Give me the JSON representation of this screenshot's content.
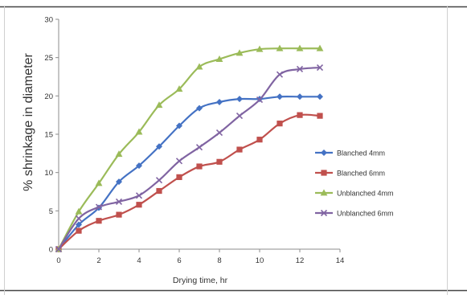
{
  "chart_data": {
    "type": "line",
    "xlabel": "Drying time, hr",
    "ylabel": "% shrinkage in diameter",
    "xlim": [
      0,
      14
    ],
    "ylim": [
      0,
      30
    ],
    "x_ticks": [
      "0",
      "2",
      "4",
      "6",
      "8",
      "10",
      "12",
      "14"
    ],
    "y_ticks": [
      "0",
      "5",
      "10",
      "15",
      "20",
      "25",
      "30"
    ],
    "grid": false,
    "legend_position": "right",
    "series": [
      {
        "name": "Blanched 4mm",
        "color": "#4472C4",
        "marker": "diamond",
        "x": [
          0,
          1,
          2,
          3,
          4,
          5,
          6,
          7,
          8,
          9,
          10,
          11,
          12,
          13
        ],
        "values": [
          0,
          3.2,
          5.4,
          8.8,
          10.9,
          13.4,
          16.1,
          18.4,
          19.2,
          19.6,
          19.6,
          19.9,
          19.9,
          19.9
        ]
      },
      {
        "name": "Blanched 6mm",
        "color": "#C0504D",
        "marker": "square",
        "x": [
          0,
          1,
          2,
          3,
          4,
          5,
          6,
          7,
          8,
          9,
          10,
          11,
          12,
          13
        ],
        "values": [
          0,
          2.4,
          3.7,
          4.5,
          5.8,
          7.6,
          9.4,
          10.8,
          11.4,
          13.0,
          14.3,
          16.4,
          17.5,
          17.4
        ]
      },
      {
        "name": "Unblanched 4mm",
        "color": "#9BBB59",
        "marker": "triangle",
        "x": [
          0,
          1,
          2,
          3,
          4,
          5,
          6,
          7,
          8,
          9,
          10,
          11,
          12,
          13
        ],
        "values": [
          0,
          4.9,
          8.6,
          12.4,
          15.3,
          18.8,
          20.9,
          23.8,
          24.8,
          25.6,
          26.1,
          26.2,
          26.2,
          26.2
        ]
      },
      {
        "name": "Unblanched 6mm",
        "color": "#8064A2",
        "marker": "x",
        "x": [
          0,
          1,
          2,
          3,
          4,
          5,
          6,
          7,
          8,
          9,
          10,
          11,
          12,
          13
        ],
        "values": [
          0,
          4.0,
          5.5,
          6.2,
          7.0,
          9.0,
          11.5,
          13.3,
          15.2,
          17.4,
          19.5,
          22.8,
          23.5,
          23.7
        ]
      }
    ]
  }
}
